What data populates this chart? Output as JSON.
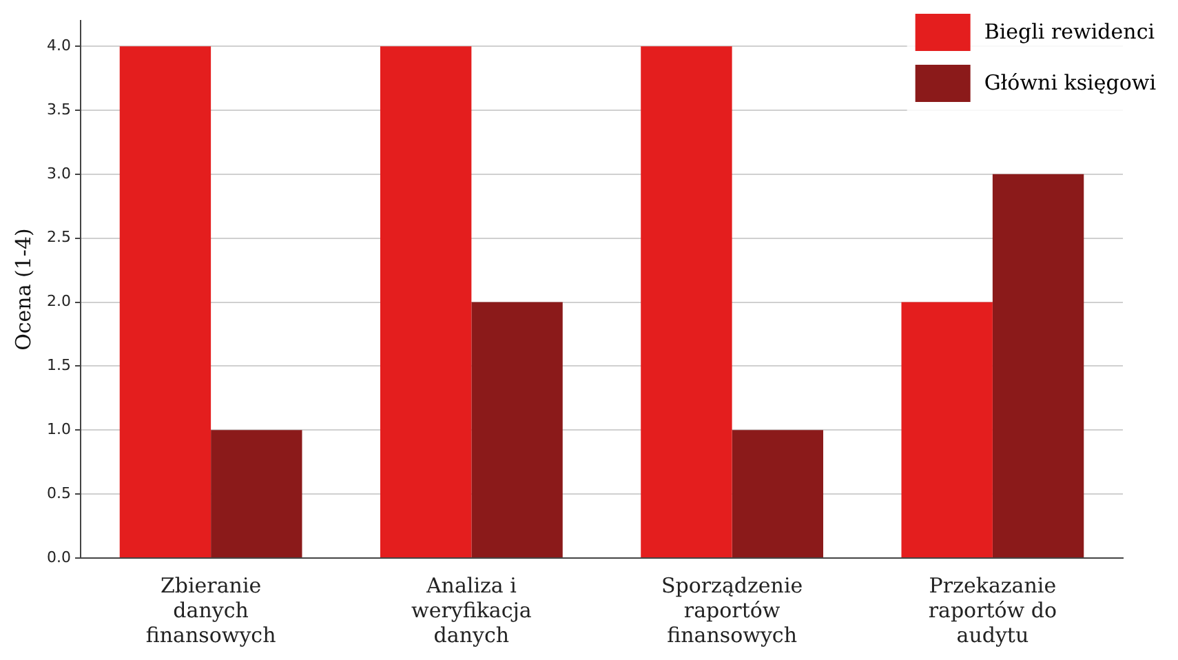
{
  "chart_data": {
    "type": "bar",
    "ylabel": "Ocena (1-4)",
    "categories": [
      "Zbieranie danych finansowych",
      "Analiza i weryfikacja danych",
      "Sporządzenie raportów finansowych",
      "Przekazanie raportów do audytu"
    ],
    "series": [
      {
        "name": "Biegli rewidenci",
        "color": "#e41e1e",
        "values": [
          4,
          4,
          4,
          2
        ]
      },
      {
        "name": "Główni księgowi",
        "color": "#8b1a1a",
        "values": [
          1,
          2,
          1,
          3
        ]
      }
    ],
    "ylim": [
      0,
      4.2
    ],
    "yticks": [
      {
        "value": 0,
        "label": "0.0"
      },
      {
        "value": 0.5,
        "label": "0.5"
      },
      {
        "value": 1,
        "label": "1.0"
      },
      {
        "value": 1.5,
        "label": "1.5"
      },
      {
        "value": 2,
        "label": "2.0"
      },
      {
        "value": 2.5,
        "label": "2.5"
      },
      {
        "value": 3,
        "label": "3.0"
      },
      {
        "value": 3.5,
        "label": "3.5"
      },
      {
        "value": 4,
        "label": "4.0"
      }
    ],
    "grid": "y",
    "legend": "top right"
  }
}
